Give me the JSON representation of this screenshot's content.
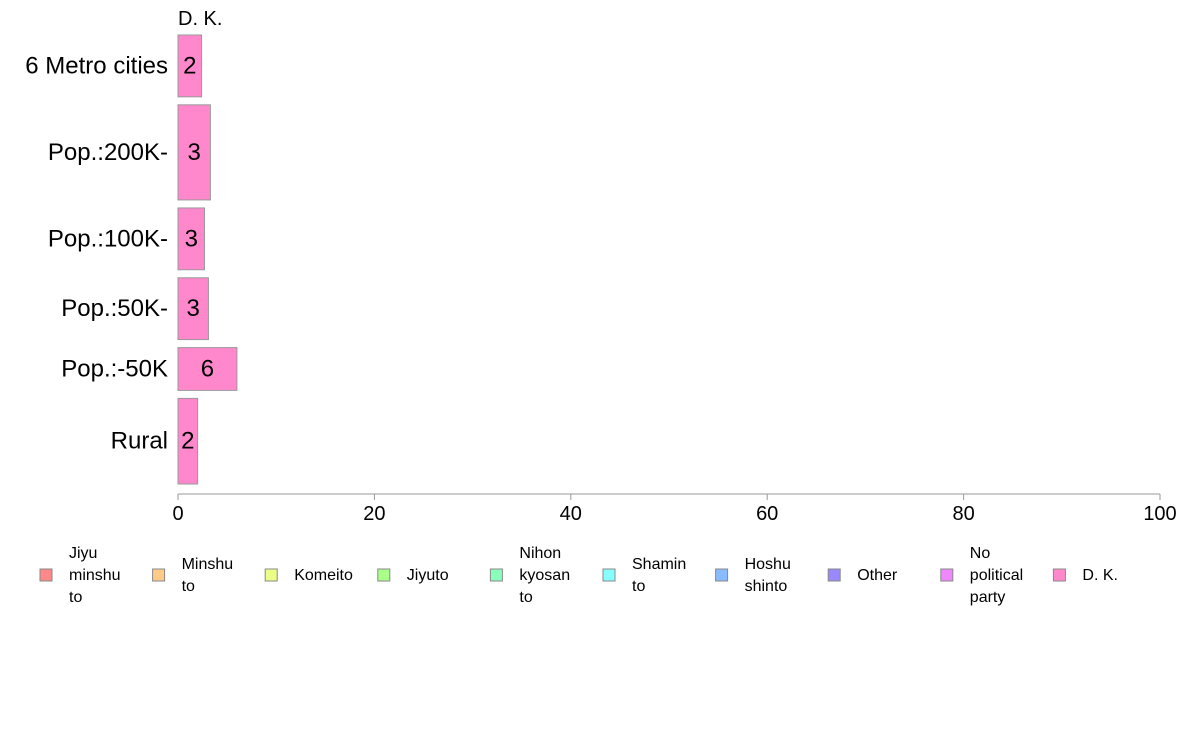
{
  "chart_data": {
    "type": "bar",
    "orientation": "horizontal",
    "panel_title": "D. K.",
    "categories": [
      "6 Metro cities",
      "Pop.:200K-",
      "Pop.:100K-",
      "Pop.:50K-",
      "Pop.:-50K",
      "Rural"
    ],
    "series": [
      {
        "name": "D. K.",
        "color": "#ff88cc",
        "values": [
          2.4,
          3.3,
          2.7,
          3.1,
          6.0,
          2.0
        ],
        "labels": [
          "2",
          "3",
          "3",
          "3",
          "6",
          "2"
        ]
      }
    ],
    "category_weights": [
      0.65,
      1.0,
      0.65,
      0.65,
      0.45,
      0.9
    ],
    "xlim": [
      0,
      100
    ],
    "xticks": [
      0,
      20,
      40,
      60,
      80,
      100
    ],
    "xticklabels": [
      "0",
      "20",
      "40",
      "60",
      "80",
      "100"
    ],
    "bar_stroke": "#999999",
    "axis_color": "#999999",
    "legend": {
      "placement": "bottom",
      "items": [
        {
          "label": [
            "Jiyu",
            "minshu",
            "to"
          ],
          "color": "#ff8888"
        },
        {
          "label": [
            "Minshu",
            "to"
          ],
          "color": "#ffcc88"
        },
        {
          "label": [
            "Komeito"
          ],
          "color": "#eeff88"
        },
        {
          "label": [
            "Jiyuto"
          ],
          "color": "#aaff88"
        },
        {
          "label": [
            "Nihon",
            "kyosan",
            "to"
          ],
          "color": "#88ffbb"
        },
        {
          "label": [
            "Shamin",
            "to"
          ],
          "color": "#88ffff"
        },
        {
          "label": [
            "Hoshu",
            "shinto"
          ],
          "color": "#88bbff"
        },
        {
          "label": [
            "Other"
          ],
          "color": "#9988ff"
        },
        {
          "label": [
            "No",
            "political",
            "party"
          ],
          "color": "#ee88ff"
        },
        {
          "label": [
            "D. K."
          ],
          "color": "#ff88cc"
        }
      ]
    }
  }
}
